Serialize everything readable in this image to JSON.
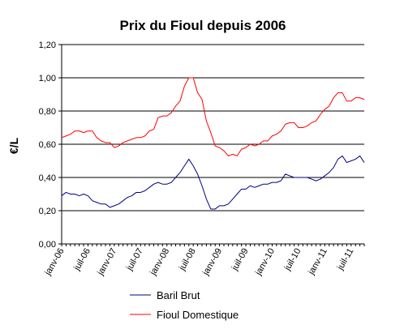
{
  "chart_data": {
    "type": "line",
    "title": "Prix du Fioul depuis 2006",
    "ylabel": "€/L",
    "xlabel": "",
    "ylim": [
      0,
      1.2
    ],
    "yticks": [
      "0,00",
      "0,20",
      "0,40",
      "0,60",
      "0,80",
      "1,00",
      "1,20"
    ],
    "grid": "horizontal",
    "legend_position": "bottom",
    "x_tick_labels": [
      "janv-06",
      "juil-06",
      "janv-07",
      "juil-07",
      "janv-08",
      "juil-08",
      "janv-09",
      "juil-09",
      "janv-10",
      "juil-10",
      "janv-11",
      "juil-11"
    ],
    "x": [
      "2006-01",
      "2006-02",
      "2006-03",
      "2006-04",
      "2006-05",
      "2006-06",
      "2006-07",
      "2006-08",
      "2006-09",
      "2006-10",
      "2006-11",
      "2006-12",
      "2007-01",
      "2007-02",
      "2007-03",
      "2007-04",
      "2007-05",
      "2007-06",
      "2007-07",
      "2007-08",
      "2007-09",
      "2007-10",
      "2007-11",
      "2007-12",
      "2008-01",
      "2008-02",
      "2008-03",
      "2008-04",
      "2008-05",
      "2008-06",
      "2008-07",
      "2008-08",
      "2008-09",
      "2008-10",
      "2008-11",
      "2008-12",
      "2009-01",
      "2009-02",
      "2009-03",
      "2009-04",
      "2009-05",
      "2009-06",
      "2009-07",
      "2009-08",
      "2009-09",
      "2009-10",
      "2009-11",
      "2009-12",
      "2010-01",
      "2010-02",
      "2010-03",
      "2010-04",
      "2010-05",
      "2010-06",
      "2010-07",
      "2010-08",
      "2010-09",
      "2010-10",
      "2010-11",
      "2010-12",
      "2011-01",
      "2011-02",
      "2011-03",
      "2011-04",
      "2011-05",
      "2011-06",
      "2011-07",
      "2011-08",
      "2011-09",
      "2011-10"
    ],
    "series": [
      {
        "name": "Baril Brut",
        "color": "#000080",
        "values": [
          0.29,
          0.31,
          0.3,
          0.3,
          0.29,
          0.3,
          0.29,
          0.26,
          0.25,
          0.24,
          0.24,
          0.22,
          0.23,
          0.24,
          0.26,
          0.28,
          0.29,
          0.31,
          0.31,
          0.32,
          0.34,
          0.36,
          0.37,
          0.36,
          0.36,
          0.37,
          0.4,
          0.43,
          0.47,
          0.51,
          0.47,
          0.42,
          0.35,
          0.27,
          0.21,
          0.21,
          0.23,
          0.23,
          0.24,
          0.27,
          0.3,
          0.33,
          0.33,
          0.35,
          0.34,
          0.35,
          0.36,
          0.36,
          0.37,
          0.37,
          0.38,
          0.42,
          0.41,
          0.4,
          0.4,
          0.4,
          0.4,
          0.39,
          0.38,
          0.39,
          0.41,
          0.43,
          0.46,
          0.51,
          0.53,
          0.49,
          0.5,
          0.51,
          0.53,
          0.49
        ]
      },
      {
        "name": "Fioul Domestique",
        "color": "#ff0000",
        "values": [
          0.64,
          0.65,
          0.66,
          0.68,
          0.68,
          0.67,
          0.68,
          0.68,
          0.64,
          0.62,
          0.61,
          0.61,
          0.58,
          0.59,
          0.61,
          0.62,
          0.63,
          0.64,
          0.64,
          0.65,
          0.68,
          0.69,
          0.76,
          0.77,
          0.77,
          0.79,
          0.83,
          0.86,
          0.95,
          1.0,
          1.0,
          0.91,
          0.87,
          0.74,
          0.67,
          0.59,
          0.58,
          0.56,
          0.53,
          0.54,
          0.53,
          0.57,
          0.58,
          0.6,
          0.59,
          0.6,
          0.62,
          0.62,
          0.65,
          0.66,
          0.68,
          0.72,
          0.73,
          0.73,
          0.7,
          0.7,
          0.71,
          0.73,
          0.74,
          0.78,
          0.81,
          0.83,
          0.88,
          0.91,
          0.91,
          0.86,
          0.86,
          0.88,
          0.88,
          0.87
        ]
      }
    ]
  }
}
